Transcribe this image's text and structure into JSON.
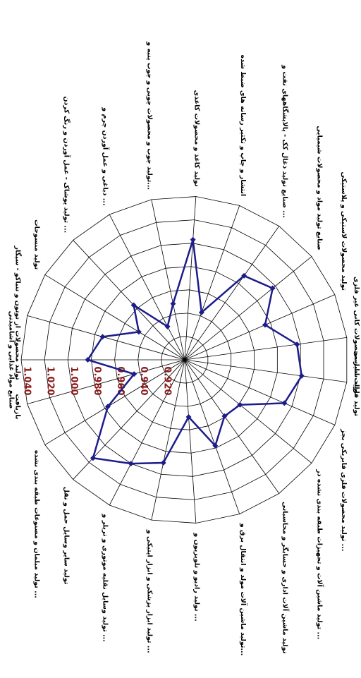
{
  "chart_data": {
    "type": "radar",
    "categories": [
      "صنایع مواد غذایی و آشامیدنی",
      "تولید محصولات از توتون و تنباکو - سیگار",
      "تولید منسوجات",
      "تولید پوشاک - عمل آوردن و رنگ کردن ...",
      "دباغی و عمل آوردن چرم و ...",
      "تولید چوب و محصولات چوبی و چوب پنبه و...",
      "تولید کاغذ و محصولات کاغذی",
      "انتشار و چاپ و تکثیر رسانه های ضبط شده",
      "صنایع تولید ذغال کک - پالایشگاههای نفت و ...",
      "صنایع تولید مواد و محصولات شیمیایی",
      "تولید محصولات لاستیکی و پلاستیکی",
      "تولید سایر محصولات کانی غیر فلزی",
      "تولید فلزات اساسی",
      "تولید محصولات فلزی فابریکی بجز ...",
      "تولید ماشین آلات و تجهیزات طبقه بندی نشده در ...",
      "تولید ماشین آلات اداری و حسابگر و محاسباتی",
      "تولید ماشین آلات مولد و انتقال برق و...",
      "تولید رادیو و تلویزیون و ...",
      "تولید ابزار پزشکی و ابزار اپتیکی و ...",
      "تولید وسایل نقلیه موتوری و تریلر و ...",
      "تولید سایر وسایل حمل و نقل",
      "تولید مبلمان و مصنوعات طبقه بندی نشده ...",
      "بازیافت"
    ],
    "values": [
      0.983,
      0.973,
      0.946,
      0.964,
      0.932,
      0.949,
      1.003,
      0.943,
      0.988,
      0.997,
      0.975,
      0.997,
      1.001,
      0.993,
      0.961,
      0.959,
      0.978,
      0.949,
      0.99,
      1.0,
      1.015,
      0.977,
      0.945
    ],
    "color": "#1c1c8c",
    "rlim": [
      0.9,
      1.04
    ],
    "rticks": [
      {
        "value": 0.92,
        "label": "0.920"
      },
      {
        "value": 0.94,
        "label": "0.940"
      },
      {
        "value": 0.96,
        "label": "0.960"
      },
      {
        "value": 0.98,
        "label": "0.980"
      },
      {
        "value": 1.0,
        "label": "1.000"
      },
      {
        "value": 1.02,
        "label": "1.020"
      },
      {
        "value": 1.04,
        "label": "1.040"
      }
    ],
    "grid": true
  }
}
